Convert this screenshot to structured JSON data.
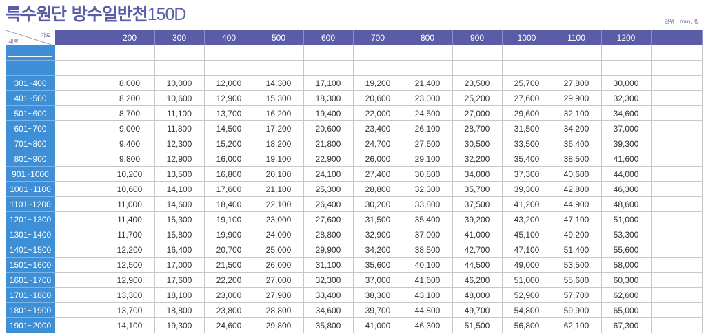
{
  "header": {
    "title": "특수원단 방수일반천",
    "title_suffix": "150D",
    "unit": "단위 : mm, 원"
  },
  "table": {
    "corner_width_label": "가로",
    "corner_height_label": "세로",
    "columns": [
      "200",
      "300",
      "400",
      "500",
      "600",
      "700",
      "800",
      "900",
      "1000",
      "1100",
      "1200"
    ],
    "rows": [
      {
        "label": "301~400",
        "values": [
          "8,000",
          "10,000",
          "12,000",
          "14,300",
          "17,100",
          "19,200",
          "21,400",
          "23,500",
          "25,700",
          "27,800",
          "30,000"
        ]
      },
      {
        "label": "401~500",
        "values": [
          "8,200",
          "10,600",
          "12,900",
          "15,300",
          "18,300",
          "20,600",
          "23,000",
          "25,200",
          "27,600",
          "29,900",
          "32,300"
        ]
      },
      {
        "label": "501~600",
        "values": [
          "8,700",
          "11,100",
          "13,700",
          "16,200",
          "19,400",
          "22,000",
          "24,500",
          "27,000",
          "29,600",
          "32,100",
          "34,600"
        ]
      },
      {
        "label": "601~700",
        "values": [
          "9,000",
          "11,800",
          "14,500",
          "17,200",
          "20,600",
          "23,400",
          "26,100",
          "28,700",
          "31,500",
          "34,200",
          "37,000"
        ]
      },
      {
        "label": "701~800",
        "values": [
          "9,400",
          "12,300",
          "15,200",
          "18,200",
          "21,800",
          "24,700",
          "27,600",
          "30,500",
          "33,500",
          "36,400",
          "39,300"
        ]
      },
      {
        "label": "801~900",
        "values": [
          "9,800",
          "12,900",
          "16,000",
          "19,100",
          "22,900",
          "26,000",
          "29,100",
          "32,200",
          "35,400",
          "38,500",
          "41,600"
        ]
      },
      {
        "label": "901~1000",
        "values": [
          "10,200",
          "13,500",
          "16,800",
          "20,100",
          "24,100",
          "27,400",
          "30,800",
          "34,000",
          "37,300",
          "40,600",
          "44,000"
        ]
      },
      {
        "label": "1001~1100",
        "values": [
          "10,600",
          "14,100",
          "17,600",
          "21,100",
          "25,300",
          "28,800",
          "32,300",
          "35,700",
          "39,300",
          "42,800",
          "46,300"
        ]
      },
      {
        "label": "1101~1200",
        "values": [
          "11,000",
          "14,600",
          "18,400",
          "22,100",
          "26,400",
          "30,200",
          "33,800",
          "37,500",
          "41,200",
          "44,900",
          "48,600"
        ]
      },
      {
        "label": "1201~1300",
        "values": [
          "11,400",
          "15,300",
          "19,100",
          "23,000",
          "27,600",
          "31,500",
          "35,400",
          "39,200",
          "43,200",
          "47,100",
          "51,000"
        ]
      },
      {
        "label": "1301~1400",
        "values": [
          "11,700",
          "15,800",
          "19,900",
          "24,000",
          "28,800",
          "32,900",
          "37,000",
          "41,000",
          "45,100",
          "49,200",
          "53,300"
        ]
      },
      {
        "label": "1401~1500",
        "values": [
          "12,200",
          "16,400",
          "20,700",
          "25,000",
          "29,900",
          "34,200",
          "38,500",
          "42,700",
          "47,100",
          "51,400",
          "55,600"
        ]
      },
      {
        "label": "1501~1600",
        "values": [
          "12,500",
          "17,000",
          "21,500",
          "26,000",
          "31,100",
          "35,600",
          "40,100",
          "44,500",
          "49,000",
          "53,500",
          "58,000"
        ]
      },
      {
        "label": "1601~1700",
        "values": [
          "12,900",
          "17,600",
          "22,200",
          "27,000",
          "32,300",
          "37,000",
          "41,600",
          "46,200",
          "51,000",
          "55,600",
          "60,300"
        ]
      },
      {
        "label": "1701~1800",
        "values": [
          "13,300",
          "18,100",
          "23,000",
          "27,900",
          "33,400",
          "38,300",
          "43,100",
          "48,000",
          "52,900",
          "57,700",
          "62,600"
        ]
      },
      {
        "label": "1801~1900",
        "values": [
          "13,700",
          "18,800",
          "23,800",
          "28,800",
          "34,600",
          "39,700",
          "44,800",
          "49,700",
          "54,800",
          "59,900",
          "65,000"
        ]
      },
      {
        "label": "1901~2000",
        "values": [
          "14,100",
          "19,300",
          "24,600",
          "29,800",
          "35,800",
          "41,000",
          "46,300",
          "51,500",
          "56,800",
          "62,100",
          "67,300"
        ]
      }
    ]
  }
}
